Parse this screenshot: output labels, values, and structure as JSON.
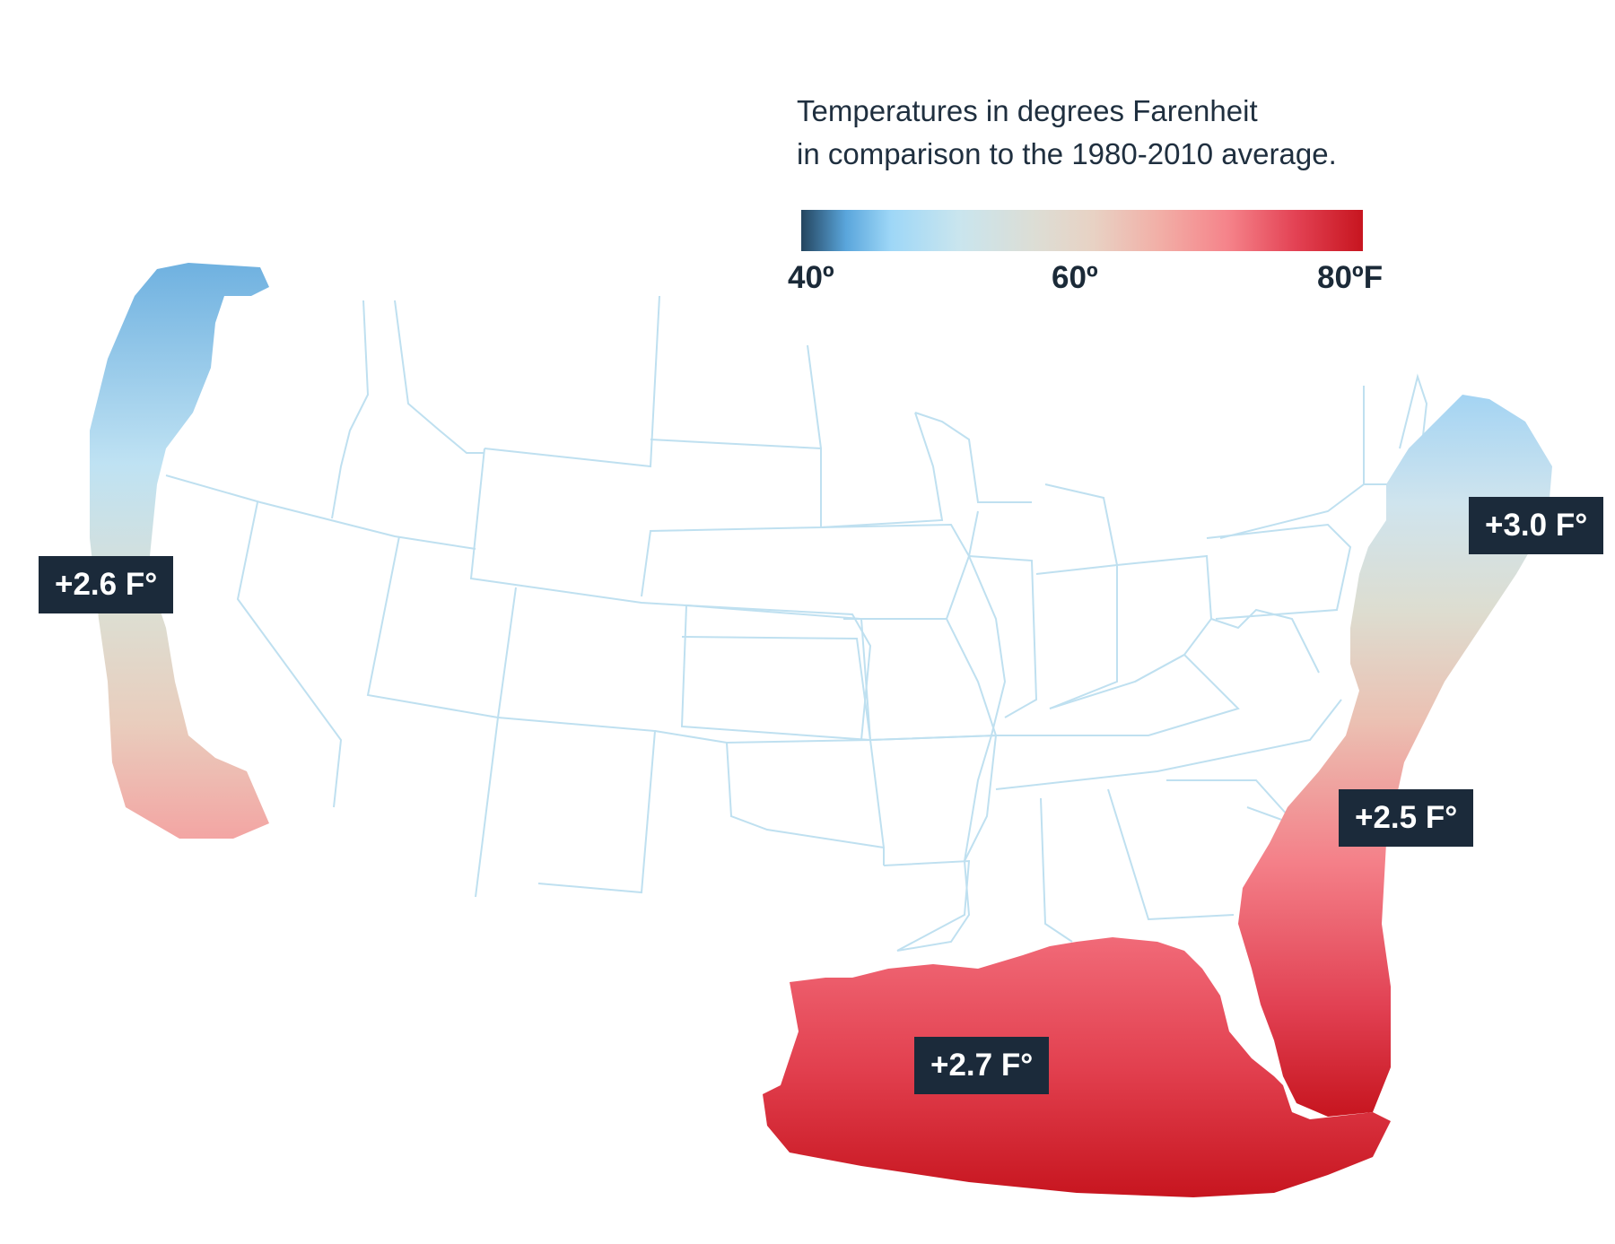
{
  "legend": {
    "title_line1": "Temperatures in degrees Farenheit",
    "title_line2": "in comparison to the 1980-2010 average.",
    "ticks": [
      "40º",
      "60º",
      "80ºF"
    ],
    "scale_min": 40,
    "scale_max": 80,
    "gradient_colors": [
      "#24455f",
      "#5aa6dc",
      "#9ed7f7",
      "#c9e5ee",
      "#ddddd4",
      "#e8d2c4",
      "#f2aea6",
      "#f5838a",
      "#e34254",
      "#c7151f"
    ]
  },
  "regions": [
    {
      "name": "West Coast",
      "label": "+2.6 F°"
    },
    {
      "name": "Northeast Coast",
      "label": "+3.0 F°"
    },
    {
      "name": "Southeast Coast",
      "label": "+2.5 F°"
    },
    {
      "name": "Gulf of Mexico",
      "label": "+2.7 F°"
    }
  ],
  "colors": {
    "state_border": "#bfe0f0",
    "badge_background": "#1b2a3a",
    "cold": "#6fb1e0",
    "warm": "#c7151f"
  }
}
